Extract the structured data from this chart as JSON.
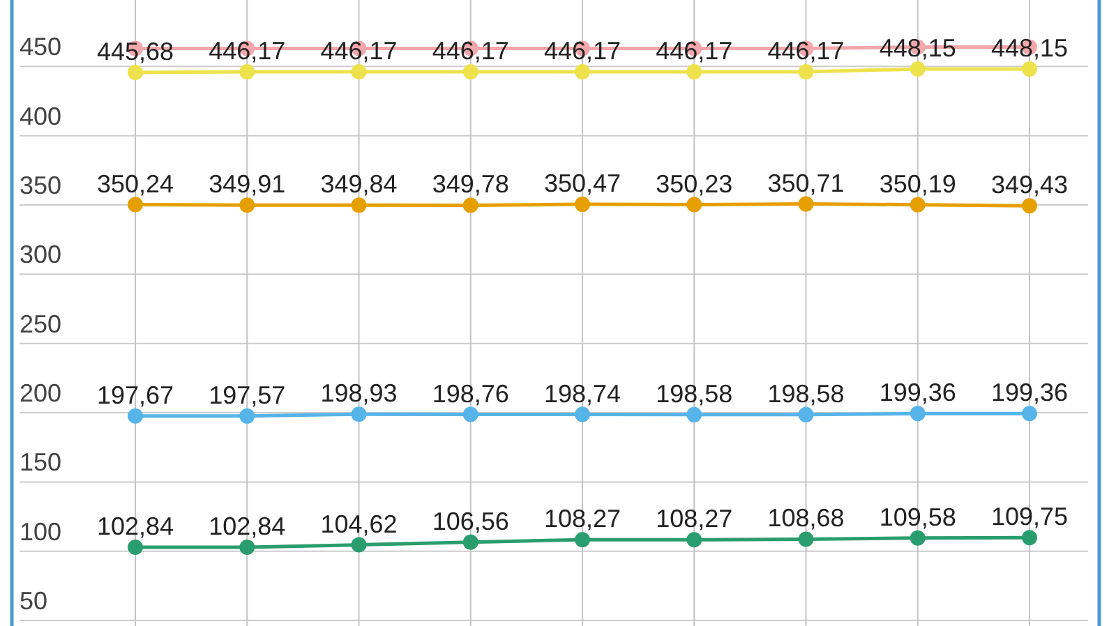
{
  "chart_data": {
    "type": "line",
    "categories": [
      null,
      null,
      null,
      null,
      null,
      null,
      null,
      null,
      null
    ],
    "ylim": [
      46,
      498
    ],
    "yticks": [
      50,
      100,
      150,
      200,
      250,
      300,
      350,
      400,
      450
    ],
    "grid": true,
    "marker": "circle",
    "line_style": "solid",
    "tick_labels": "y",
    "series": [
      {
        "color": "#f2a7ab",
        "values": [
          463,
          463,
          463,
          463,
          463,
          463,
          463,
          464,
          464
        ]
      },
      {
        "color": "#ede24b",
        "values": [
          445.68,
          446.17,
          446.17,
          446.17,
          446.17,
          446.17,
          446.17,
          448.15,
          448.15
        ],
        "value_labels": [
          "445,68",
          "446,17",
          "446,17",
          "446,17",
          "446,17",
          "446,17",
          "446,17",
          "448,15",
          "448,15"
        ]
      },
      {
        "color": "#e69f00",
        "values": [
          350.24,
          349.91,
          349.84,
          349.78,
          350.47,
          350.23,
          350.71,
          350.19,
          349.43
        ],
        "value_labels": [
          "350,24",
          "349,91",
          "349,84",
          "349,78",
          "350,47",
          "350,23",
          "350,71",
          "350,19",
          "349,43"
        ]
      },
      {
        "color": "#56b4e9",
        "values": [
          197.67,
          197.57,
          198.93,
          198.76,
          198.74,
          198.58,
          198.58,
          199.36,
          199.36
        ],
        "value_labels": [
          "197,67",
          "197,57",
          "198,93",
          "198,76",
          "198,74",
          "198,58",
          "198,58",
          "199,36",
          "199,36"
        ]
      },
      {
        "color": "#2a9d6e",
        "values": [
          102.84,
          102.84,
          104.62,
          106.56,
          108.27,
          108.27,
          108.68,
          109.58,
          109.75
        ],
        "value_labels": [
          "102,84",
          "102,84",
          "104,62",
          "106,56",
          "108,27",
          "108,27",
          "108,68",
          "109,58",
          "109,75"
        ]
      }
    ]
  }
}
